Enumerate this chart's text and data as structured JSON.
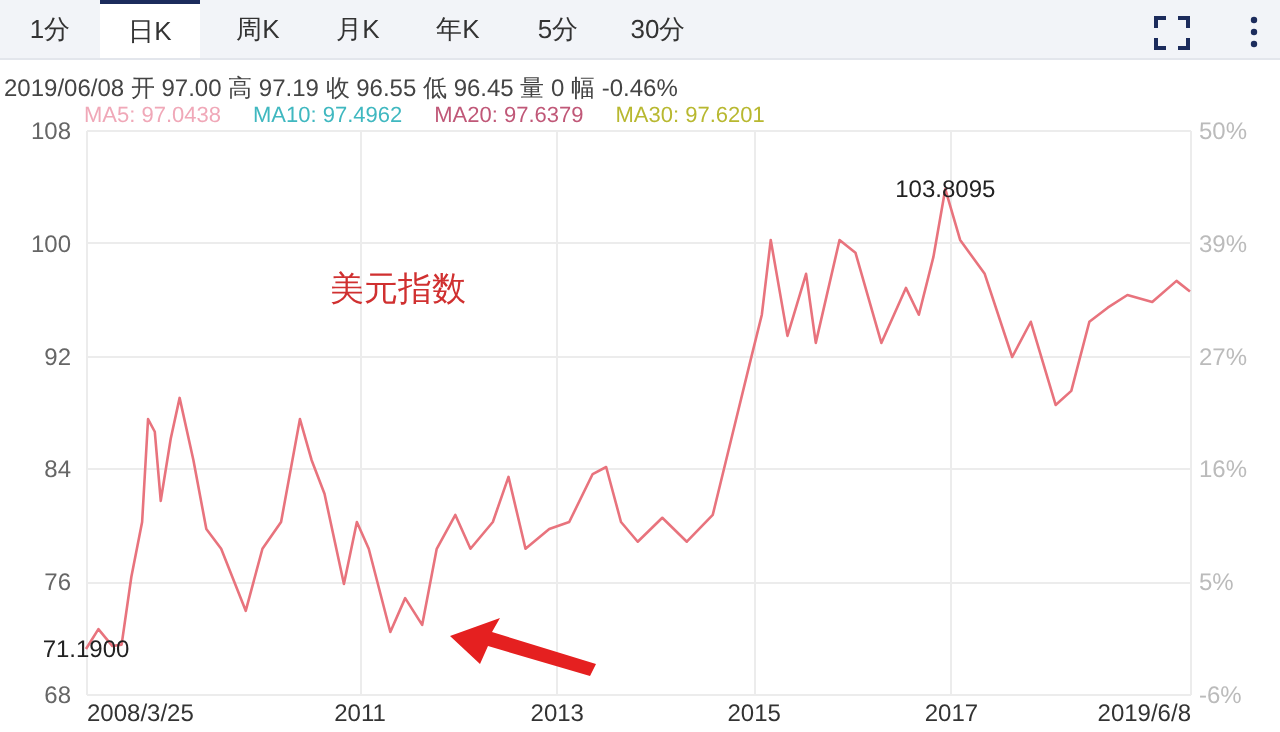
{
  "chart_data": {
    "type": "line",
    "x": [
      "2008-03-25",
      "2008-05-10",
      "2008-07-01",
      "2008-08-04",
      "2008-09-09",
      "2008-10-19",
      "2008-11-10",
      "2008-12-05",
      "2008-12-27",
      "2009-02-02",
      "2009-03-07",
      "2009-04-27",
      "2009-06-14",
      "2009-08-08",
      "2009-11-07",
      "2010-01-08",
      "2010-03-18",
      "2010-05-27",
      "2010-07-09",
      "2010-08-26",
      "2010-11-06",
      "2010-12-24",
      "2011-02-06",
      "2011-04-27",
      "2011-06-21",
      "2011-08-23",
      "2011-10-16",
      "2011-12-24",
      "2012-02-18",
      "2012-05-11",
      "2012-07-08",
      "2012-09-09",
      "2012-12-06",
      "2013-02-18",
      "2013-05-16",
      "2013-07-05",
      "2013-08-29",
      "2013-10-30",
      "2014-01-29",
      "2014-04-30",
      "2014-08-04",
      "2014-10-12",
      "2014-12-20",
      "2015-02-02",
      "2015-03-07",
      "2015-05-08",
      "2015-07-16",
      "2015-08-21",
      "2015-11-17",
      "2016-01-15",
      "2016-04-20",
      "2016-07-20",
      "2016-09-06",
      "2016-10-30",
      "2016-12-13",
      "2017-02-06",
      "2017-05-08",
      "2017-08-18",
      "2017-10-26",
      "2018-01-26",
      "2018-03-25",
      "2018-05-31",
      "2018-08-07",
      "2018-10-19",
      "2019-01-19",
      "2019-04-19",
      "2019-06-08"
    ],
    "series": [
      {
        "color": "#e8737d",
        "values": [
          71.19,
          72.6,
          71.4,
          71.5,
          76.3,
          80.2,
          87.5,
          86.6,
          81.7,
          86.1,
          89.0,
          84.6,
          79.7,
          78.3,
          73.9,
          78.3,
          80.2,
          87.5,
          84.6,
          82.2,
          75.8,
          80.2,
          78.3,
          72.4,
          74.8,
          72.9,
          78.3,
          80.7,
          78.3,
          80.2,
          83.4,
          78.3,
          79.7,
          80.2,
          83.6,
          84.1,
          80.2,
          78.8,
          80.5,
          78.8,
          80.7,
          86.1,
          91.5,
          94.9,
          100.2,
          93.4,
          97.8,
          92.9,
          100.2,
          99.3,
          92.9,
          96.8,
          94.9,
          99.0,
          103.8095,
          100.2,
          97.8,
          91.9,
          94.4,
          88.5,
          89.5,
          94.4,
          95.4,
          96.3,
          95.8,
          97.3,
          96.55
        ]
      }
    ],
    "xlim": [
      "2008-03-25",
      "2019-06-08"
    ],
    "xticks": [
      {
        "value": "2008-03-25",
        "label": "2008/3/25"
      },
      {
        "value": "2011-01-01",
        "label": "2011"
      },
      {
        "value": "2013-01-01",
        "label": "2013"
      },
      {
        "value": "2015-01-01",
        "label": "2015"
      },
      {
        "value": "2017-01-01",
        "label": "2017"
      },
      {
        "value": "2019-06-08",
        "label": "2019/6/8"
      }
    ],
    "ylim": [
      68,
      108
    ],
    "yticks": [
      68,
      76,
      84,
      92,
      100,
      108
    ],
    "y2lim": [
      -5.79,
      49.63
    ],
    "y2ticks": [
      {
        "value": -5.79,
        "label": "-6%"
      },
      {
        "value": 5.29,
        "label": "5%"
      },
      {
        "value": 16.38,
        "label": "16%"
      },
      {
        "value": 27.46,
        "label": "27%"
      },
      {
        "value": 38.54,
        "label": "39%"
      },
      {
        "value": 49.63,
        "label": "50%"
      }
    ],
    "grid": true,
    "annotations": [
      "1分",
      "日K",
      "周K",
      "月K",
      "年K",
      "5分",
      "30分",
      "2019/06/08 开 97.00 高 97.19 收 96.55 低 96.45 量 0 幅 -0.46%",
      "MA5: 97.0438",
      "MA10: 97.4962",
      "MA20: 97.6379",
      "MA30: 97.6201",
      "美元指数",
      {
        "text": "103.8095",
        "x": "2016-12-13",
        "y": 103.8095
      },
      {
        "text": "71.1900",
        "x": "2008-03-25",
        "y": 71.19
      }
    ]
  }
}
